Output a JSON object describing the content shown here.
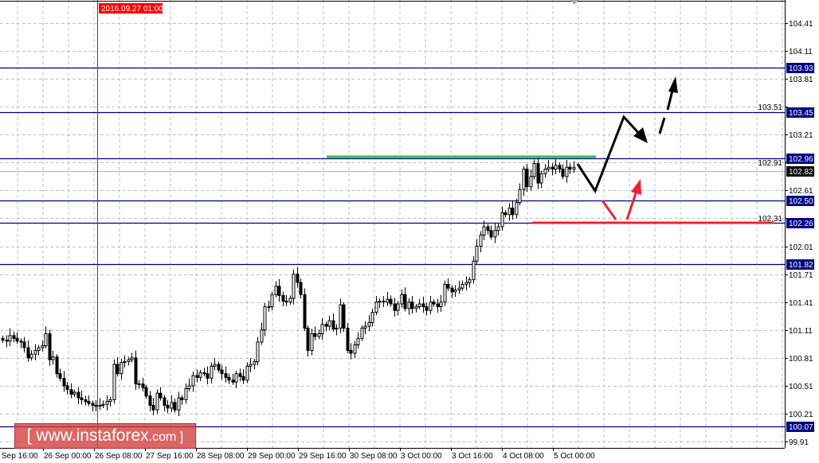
{
  "chart_data": {
    "type": "candlestick",
    "title": "",
    "price_axis": {
      "ticks": [
        104.41,
        104.11,
        103.81,
        103.51,
        103.21,
        102.91,
        102.61,
        102.31,
        102.01,
        101.71,
        101.41,
        101.11,
        100.81,
        100.51,
        100.21,
        99.91
      ],
      "range": [
        99.85,
        104.65
      ]
    },
    "time_axis": {
      "labels": [
        "Sep 16:00",
        "26 Sep 00:00",
        "26 Sep 08:00",
        "27 Sep 16:00",
        "28 Sep 08:00",
        "29 Sep 00:00",
        "29 Sep 16:00",
        "30 Sep 08:00",
        "3 Oct 00:00",
        "3 Oct 16:00",
        "4 Oct 08:00",
        "5 Oct 00:00"
      ],
      "crosshair_label": "2016.09.27 01:00"
    },
    "grid": true,
    "closes": [
      101.0,
      100.99,
      101.05,
      101.02,
      100.99,
      100.98,
      100.92,
      100.81,
      100.85,
      100.89,
      100.92,
      100.94,
      101.07,
      100.79,
      100.82,
      100.64,
      100.59,
      100.51,
      100.47,
      100.42,
      100.44,
      100.38,
      100.36,
      100.34,
      100.32,
      100.3,
      100.29,
      100.3,
      100.31,
      100.34,
      100.36,
      100.74,
      100.64,
      100.76,
      100.77,
      100.79,
      100.81,
      100.53,
      100.53,
      100.49,
      100.4,
      100.3,
      100.25,
      100.43,
      100.38,
      100.3,
      100.27,
      100.33,
      100.25,
      100.38,
      100.36,
      100.48,
      100.51,
      100.62,
      100.6,
      100.65,
      100.64,
      100.59,
      100.72,
      100.74,
      100.68,
      100.64,
      100.6,
      100.57,
      100.55,
      100.64,
      100.61,
      100.57,
      100.72,
      100.74,
      100.77,
      100.98,
      101.11,
      101.36,
      101.36,
      101.49,
      101.58,
      101.48,
      101.42,
      101.41,
      101.45,
      101.71,
      101.62,
      101.49,
      101.13,
      100.89,
      101.07,
      101.04,
      101.07,
      101.17,
      101.15,
      101.21,
      101.12,
      101.13,
      101.38,
      101.13,
      100.89,
      100.86,
      100.95,
      101.02,
      101.13,
      101.15,
      101.19,
      101.3,
      101.41,
      101.42,
      101.41,
      101.44,
      101.39,
      101.32,
      101.39,
      101.49,
      101.34,
      101.41,
      101.34,
      101.36,
      101.39,
      101.36,
      101.32,
      101.41,
      101.39,
      101.36,
      101.41,
      101.6,
      101.56,
      101.52,
      101.54,
      101.56,
      101.6,
      101.62,
      101.65,
      101.85,
      102.01,
      102.13,
      102.22,
      102.18,
      102.11,
      102.18,
      102.22,
      102.37,
      102.35,
      102.42,
      102.35,
      102.48,
      102.62,
      102.84,
      102.65,
      102.76,
      102.9,
      102.69,
      102.79,
      102.84,
      102.86,
      102.84,
      102.88,
      102.84,
      102.76,
      102.86,
      102.84,
      102.86
    ],
    "current_price": 102.82,
    "levels": [
      {
        "price": 103.93,
        "label": "103.93"
      },
      {
        "price": 103.45,
        "label": "103.45"
      },
      {
        "price": 102.96,
        "label": "102.96"
      },
      {
        "price": 102.5,
        "label": "102.50"
      },
      {
        "price": 102.26,
        "label": "102.26"
      },
      {
        "price": 101.82,
        "label": "101.82"
      },
      {
        "price": 100.07,
        "label": "100.07"
      }
    ],
    "current_label": "102.82",
    "colors": {
      "level": "#000080",
      "bull_body": "#ffffff",
      "bear_body": "#000000",
      "grid": "#c0c0c0",
      "crosshair": "#ff0000",
      "resistance": "#33bb44",
      "support": "#ee2233",
      "current": "#b0b0b0"
    }
  },
  "watermark": {
    "text": "[ www.instaforex",
    "suffix": ".com ]"
  }
}
